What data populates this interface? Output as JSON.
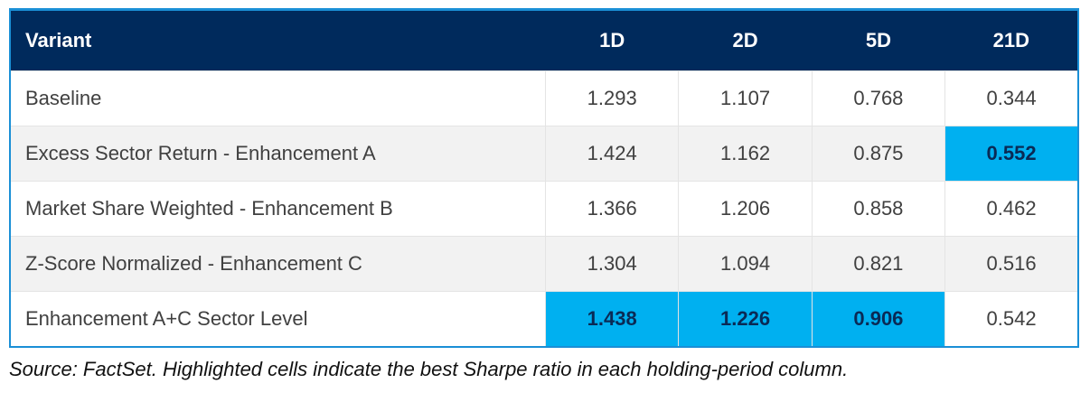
{
  "table": {
    "headers": [
      "Variant",
      "1D",
      "2D",
      "5D",
      "21D"
    ],
    "rows": [
      {
        "variant": "Baseline",
        "values": [
          "1.293",
          "1.107",
          "0.768",
          "0.344"
        ],
        "best": [
          false,
          false,
          false,
          false
        ]
      },
      {
        "variant": "Excess Sector Return - Enhancement A",
        "values": [
          "1.424",
          "1.162",
          "0.875",
          "0.552"
        ],
        "best": [
          false,
          false,
          false,
          true
        ]
      },
      {
        "variant": "Market Share Weighted - Enhancement B",
        "values": [
          "1.366",
          "1.206",
          "0.858",
          "0.462"
        ],
        "best": [
          false,
          false,
          false,
          false
        ]
      },
      {
        "variant": "Z-Score Normalized - Enhancement C",
        "values": [
          "1.304",
          "1.094",
          "0.821",
          "0.516"
        ],
        "best": [
          false,
          false,
          false,
          false
        ]
      },
      {
        "variant": "Enhancement A+C Sector Level",
        "values": [
          "1.438",
          "1.226",
          "0.906",
          "0.542"
        ],
        "best": [
          true,
          true,
          true,
          false
        ]
      }
    ]
  },
  "footnote": "Source: FactSet. Highlighted cells indicate the best Sharpe ratio in each holding-period column.",
  "colors": {
    "header_bg": "#002a5c",
    "highlight": "#00b0f0",
    "border_accent": "#1a8fd6"
  }
}
